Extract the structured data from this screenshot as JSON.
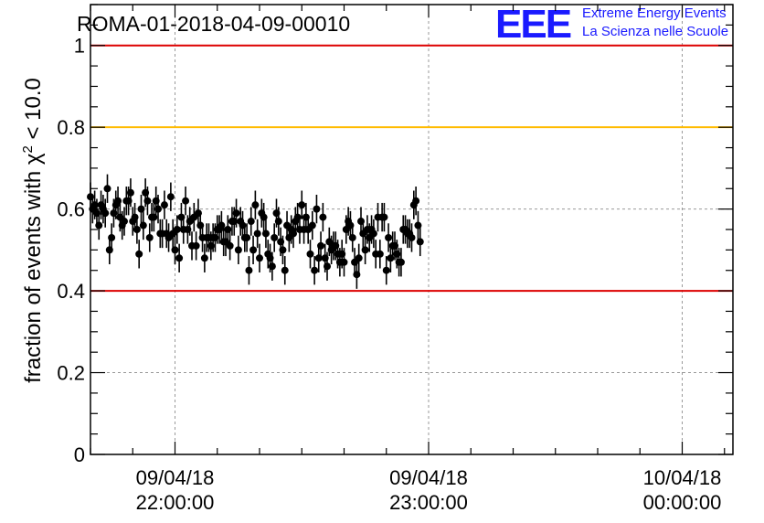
{
  "chart_data": {
    "type": "scatter",
    "title": "ROMA-01-2018-04-09-00010",
    "ylabel_prefix": "fraction of events with ",
    "ylabel_symbol": "χ",
    "ylabel_exponent": "2",
    "ylabel_suffix": " < 10.0",
    "xlabel": "",
    "ylim": [
      0,
      1.1
    ],
    "x_time_range": [
      "2018-04-09 21:40",
      "2018-04-10 00:12"
    ],
    "y_ticks": [
      {
        "value": 0,
        "label": "0"
      },
      {
        "value": 0.2,
        "label": "0.2"
      },
      {
        "value": 0.4,
        "label": "0.4"
      },
      {
        "value": 0.6,
        "label": "0.6"
      },
      {
        "value": 0.8,
        "label": "0.8"
      },
      {
        "value": 1.0,
        "label": "1"
      }
    ],
    "x_ticks": [
      {
        "time": "2018-04-09 22:00",
        "date_label": "09/04/18",
        "time_label": "22:00:00"
      },
      {
        "time": "2018-04-09 23:00",
        "date_label": "09/04/18",
        "time_label": "23:00:00"
      },
      {
        "time": "2018-04-10 00:00",
        "date_label": "10/04/18",
        "time_label": "00:00:00"
      }
    ],
    "reference_lines": [
      {
        "y": 1.0,
        "color": "#dd0000"
      },
      {
        "y": 0.8,
        "color": "#ffbb00"
      },
      {
        "y": 0.4,
        "color": "#dd0000"
      }
    ],
    "grid": true,
    "grid_color": "#999999",
    "marker_color": "#000000",
    "series": [
      {
        "start_time": "2018-04-09 21:40",
        "step_minutes": 0.5,
        "y_error": 0.035,
        "y": [
          0.63,
          0.6,
          0.61,
          0.59,
          0.56,
          0.61,
          0.6,
          0.59,
          0.65,
          0.5,
          0.53,
          0.59,
          0.61,
          0.62,
          0.58,
          0.56,
          0.57,
          0.62,
          0.62,
          0.64,
          0.57,
          0.58,
          0.55,
          0.49,
          0.6,
          0.56,
          0.64,
          0.62,
          0.53,
          0.58,
          0.58,
          0.62,
          0.6,
          0.54,
          0.54,
          0.61,
          0.54,
          0.53,
          0.63,
          0.54,
          0.5,
          0.55,
          0.48,
          0.58,
          0.55,
          0.62,
          0.55,
          0.57,
          0.51,
          0.58,
          0.51,
          0.59,
          0.56,
          0.53,
          0.48,
          0.53,
          0.53,
          0.51,
          0.53,
          0.53,
          0.55,
          0.55,
          0.56,
          0.52,
          0.52,
          0.55,
          0.51,
          0.57,
          0.57,
          0.59,
          0.5,
          0.57,
          0.56,
          0.53,
          0.53,
          0.45,
          0.57,
          0.5,
          0.61,
          0.54,
          0.48,
          0.59,
          0.58,
          0.54,
          0.49,
          0.48,
          0.46,
          0.53,
          0.59,
          0.57,
          0.52,
          0.5,
          0.45,
          0.56,
          0.53,
          0.55,
          0.54,
          0.57,
          0.58,
          0.55,
          0.61,
          0.55,
          0.58,
          0.55,
          0.49,
          0.56,
          0.45,
          0.6,
          0.48,
          0.51,
          0.58,
          0.48,
          0.46,
          0.52,
          0.5,
          0.51,
          0.51,
          0.49,
          0.47,
          0.49,
          0.47,
          0.55,
          0.57,
          0.56,
          0.53,
          0.47,
          0.44,
          0.48,
          0.57,
          0.54,
          0.5,
          0.55,
          0.53,
          0.55,
          0.54,
          0.49,
          0.58,
          0.49,
          0.58,
          0.58,
          0.45,
          0.53,
          0.48,
          0.51,
          0.51,
          0.49,
          0.47,
          0.47,
          0.55,
          0.55,
          0.54,
          0.54,
          0.53,
          0.61,
          0.62,
          0.56,
          0.52
        ]
      }
    ]
  },
  "logo": {
    "letters": "EEE",
    "line1": "Extreme Energy Events",
    "line2": "La Scienza nelle Scuole",
    "color": "#1a1aff"
  }
}
